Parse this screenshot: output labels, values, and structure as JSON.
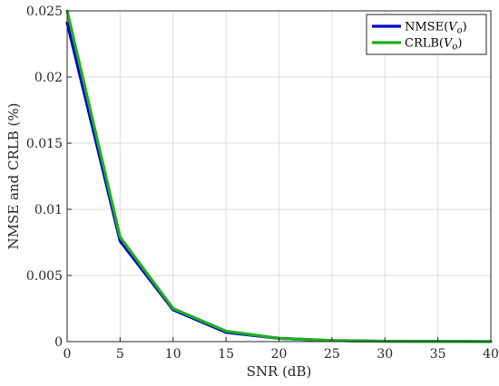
{
  "chart_data": {
    "type": "line",
    "title": "",
    "xlabel": "SNR (dB)",
    "ylabel": "NMSE and CRLB (%)",
    "xlim": [
      0,
      40
    ],
    "ylim": [
      0,
      0.025
    ],
    "xticks": [
      "0",
      "5",
      "10",
      "15",
      "20",
      "25",
      "30",
      "35",
      "40"
    ],
    "yticks": [
      "0",
      "0.005",
      "0.01",
      "0.015",
      "0.02",
      "0.025"
    ],
    "grid": true,
    "legend_position": "top-right",
    "x": [
      0,
      5,
      10,
      15,
      20,
      25,
      30,
      35,
      40
    ],
    "series": [
      {
        "name": "NMSE",
        "name_subscript_var": "V",
        "name_subscript": "o",
        "color": "#0000cc",
        "values": [
          0.0241,
          0.0076,
          0.0024,
          0.0007,
          0.00025,
          8e-05,
          3e-05,
          1e-05,
          5e-06
        ]
      },
      {
        "name": "CRLB",
        "name_subscript_var": "V",
        "name_subscript": "o",
        "color": "#1fae1f",
        "values": [
          0.025,
          0.0079,
          0.0025,
          0.00079,
          0.00025,
          8e-05,
          2.5e-05,
          8e-06,
          2.5e-06
        ]
      }
    ]
  }
}
